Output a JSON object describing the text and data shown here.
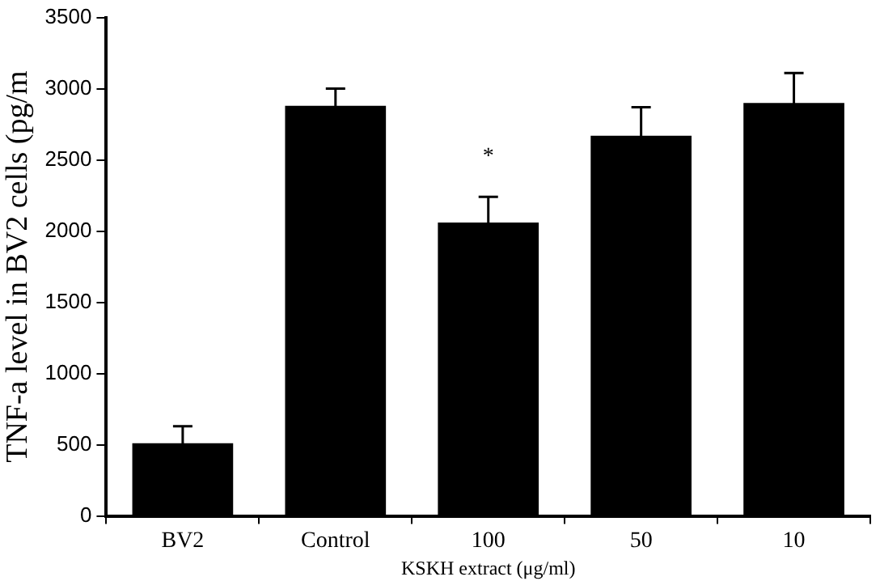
{
  "chart_data": {
    "type": "bar",
    "xlabel": "KSKH extract (μg/ml)",
    "ylabel": "TNF-a level in BV2 cells (pg/m",
    "categories": [
      "BV2",
      "Control",
      "100",
      "50",
      "10"
    ],
    "values": [
      510,
      2880,
      2060,
      2670,
      2900
    ],
    "errors": [
      120,
      120,
      180,
      200,
      210
    ],
    "color": "#000000",
    "ylim": [
      0,
      3500
    ],
    "yticks": [
      0,
      500,
      1000,
      1500,
      2000,
      2500,
      3000,
      3500
    ],
    "annotations": [
      "*"
    ],
    "grid": false,
    "legend": false
  }
}
